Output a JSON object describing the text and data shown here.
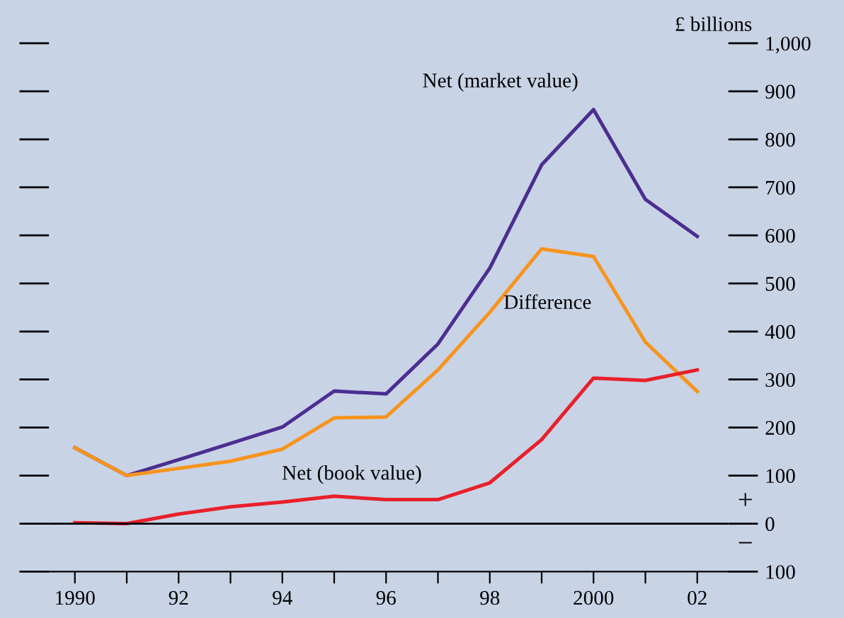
{
  "chart_data": {
    "type": "line",
    "ylabel": "£ billions",
    "x": [
      1990,
      1991,
      1992,
      1993,
      1994,
      1995,
      1996,
      1997,
      1998,
      1999,
      2000,
      2001,
      2002
    ],
    "series": [
      {
        "name": "Net (market value)",
        "color": "#4b2e91",
        "values": [
          158,
          100,
          133,
          167,
          201,
          276,
          270,
          374,
          532,
          747,
          862,
          675,
          598
        ]
      },
      {
        "name": "Difference",
        "color": "#f7941d",
        "values": [
          158,
          100,
          115,
          130,
          155,
          220,
          222,
          320,
          440,
          572,
          556,
          378,
          275
        ]
      },
      {
        "name": "Net (book value)",
        "color": "#e8202a",
        "values": [
          2,
          0,
          20,
          35,
          45,
          57,
          50,
          50,
          85,
          175,
          303,
          298,
          320
        ]
      }
    ],
    "xlim": [
      1989.5,
      2002.6
    ],
    "xticks": [
      {
        "value": 1990,
        "label": "1990"
      },
      {
        "value": 1991,
        "label": null
      },
      {
        "value": 1992,
        "label": "92"
      },
      {
        "value": 1993,
        "label": null
      },
      {
        "value": 1994,
        "label": "94"
      },
      {
        "value": 1995,
        "label": null
      },
      {
        "value": 1996,
        "label": "96"
      },
      {
        "value": 1997,
        "label": null
      },
      {
        "value": 1998,
        "label": "98"
      },
      {
        "value": 1999,
        "label": null
      },
      {
        "value": 2000,
        "label": "2000"
      },
      {
        "value": 2001,
        "label": null
      },
      {
        "value": 2002,
        "label": "02"
      }
    ],
    "ylim": [
      -100,
      1000
    ],
    "yticks": [
      {
        "value": -100,
        "label": "100"
      },
      0,
      100,
      200,
      300,
      400,
      500,
      600,
      700,
      800,
      900,
      {
        "value": 1000,
        "label": "1,000"
      }
    ],
    "ref_lines": [
      {
        "axis": "y",
        "value": 0,
        "color": "#000000"
      }
    ],
    "annotations": [
      "+",
      "−"
    ],
    "grid": false,
    "legend": false,
    "marker": "none",
    "line_style": "solid"
  }
}
